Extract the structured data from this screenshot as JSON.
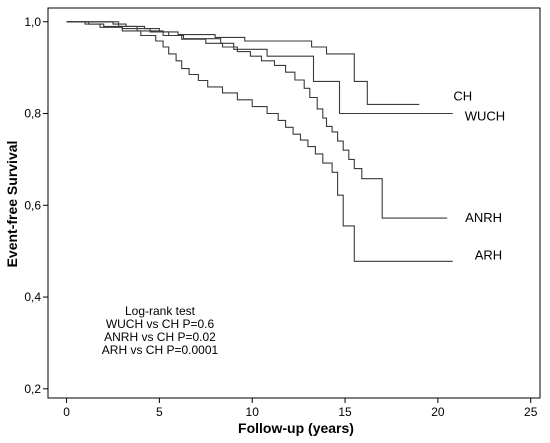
{
  "chart_data": {
    "type": "line",
    "step": true,
    "title": "",
    "xlabel": "Follow-up (years)",
    "ylabel": "Event-free Survival",
    "xlim": [
      -1,
      25.5
    ],
    "ylim": [
      0.18,
      1.03
    ],
    "x_ticks": [
      0,
      5,
      10,
      15,
      20,
      25
    ],
    "x_tick_labels": [
      "0",
      "5",
      "10",
      "15",
      "20",
      "25"
    ],
    "y_ticks": [
      0.2,
      0.4,
      0.6,
      0.8,
      1.0
    ],
    "y_tick_labels": [
      "0,2",
      "0,4",
      "0,6",
      "0,8",
      "1,0"
    ],
    "grid": false,
    "legend": "none",
    "line_color": "#3a3a3a",
    "series": [
      {
        "name": "CH",
        "points": [
          [
            0,
            1.0
          ],
          [
            2.5,
            1.0
          ],
          [
            2.5,
            0.995
          ],
          [
            3.2,
            0.995
          ],
          [
            3.2,
            0.99
          ],
          [
            4.2,
            0.99
          ],
          [
            4.2,
            0.985
          ],
          [
            5.0,
            0.985
          ],
          [
            5.0,
            0.978
          ],
          [
            6.0,
            0.978
          ],
          [
            6.0,
            0.972
          ],
          [
            8.0,
            0.972
          ],
          [
            8.0,
            0.966
          ],
          [
            9.6,
            0.966
          ],
          [
            9.6,
            0.958
          ],
          [
            13.2,
            0.958
          ],
          [
            13.2,
            0.945
          ],
          [
            14.0,
            0.945
          ],
          [
            14.0,
            0.93
          ],
          [
            15.5,
            0.93
          ],
          [
            15.5,
            0.87
          ],
          [
            16.2,
            0.87
          ],
          [
            16.2,
            0.82
          ],
          [
            19.0,
            0.82
          ]
        ],
        "end_label": "CH"
      },
      {
        "name": "WUCH",
        "points": [
          [
            0,
            1.0
          ],
          [
            2.8,
            1.0
          ],
          [
            2.8,
            0.99
          ],
          [
            3.8,
            0.99
          ],
          [
            3.8,
            0.98
          ],
          [
            5.2,
            0.98
          ],
          [
            5.2,
            0.97
          ],
          [
            6.3,
            0.97
          ],
          [
            6.3,
            0.963
          ],
          [
            8.3,
            0.963
          ],
          [
            8.3,
            0.953
          ],
          [
            9.0,
            0.953
          ],
          [
            9.0,
            0.94
          ],
          [
            10.8,
            0.94
          ],
          [
            10.8,
            0.925
          ],
          [
            13.3,
            0.925
          ],
          [
            13.3,
            0.87
          ],
          [
            14.7,
            0.87
          ],
          [
            14.7,
            0.8
          ],
          [
            20.8,
            0.8
          ]
        ],
        "end_label": "WUCH"
      },
      {
        "name": "ANRH",
        "points": [
          [
            0,
            1.0
          ],
          [
            1.2,
            1.0
          ],
          [
            1.2,
            0.995
          ],
          [
            2.0,
            0.995
          ],
          [
            2.0,
            0.99
          ],
          [
            3.0,
            0.99
          ],
          [
            3.0,
            0.985
          ],
          [
            4.5,
            0.985
          ],
          [
            4.5,
            0.978
          ],
          [
            5.5,
            0.978
          ],
          [
            5.5,
            0.97
          ],
          [
            6.2,
            0.97
          ],
          [
            6.2,
            0.962
          ],
          [
            7.5,
            0.962
          ],
          [
            7.5,
            0.953
          ],
          [
            8.4,
            0.953
          ],
          [
            8.4,
            0.945
          ],
          [
            9.2,
            0.945
          ],
          [
            9.2,
            0.935
          ],
          [
            9.9,
            0.935
          ],
          [
            9.9,
            0.925
          ],
          [
            10.5,
            0.925
          ],
          [
            10.5,
            0.915
          ],
          [
            11.2,
            0.915
          ],
          [
            11.2,
            0.905
          ],
          [
            11.8,
            0.905
          ],
          [
            11.8,
            0.89
          ],
          [
            12.3,
            0.89
          ],
          [
            12.3,
            0.873
          ],
          [
            12.8,
            0.873
          ],
          [
            12.8,
            0.855
          ],
          [
            13.1,
            0.855
          ],
          [
            13.1,
            0.835
          ],
          [
            13.5,
            0.835
          ],
          [
            13.5,
            0.81
          ],
          [
            13.8,
            0.81
          ],
          [
            13.8,
            0.79
          ],
          [
            14.0,
            0.79
          ],
          [
            14.0,
            0.772
          ],
          [
            14.3,
            0.772
          ],
          [
            14.3,
            0.76
          ],
          [
            14.6,
            0.76
          ],
          [
            14.6,
            0.74
          ],
          [
            14.9,
            0.74
          ],
          [
            14.9,
            0.72
          ],
          [
            15.2,
            0.72
          ],
          [
            15.2,
            0.7
          ],
          [
            15.5,
            0.7
          ],
          [
            15.5,
            0.68
          ],
          [
            15.9,
            0.68
          ],
          [
            15.9,
            0.658
          ],
          [
            17.0,
            0.658
          ],
          [
            17.0,
            0.572
          ],
          [
            20.5,
            0.572
          ]
        ],
        "end_label": "ANRH"
      },
      {
        "name": "ARH",
        "points": [
          [
            0,
            1.0
          ],
          [
            1.0,
            1.0
          ],
          [
            1.0,
            0.995
          ],
          [
            1.8,
            0.995
          ],
          [
            1.8,
            0.988
          ],
          [
            3.0,
            0.988
          ],
          [
            3.0,
            0.98
          ],
          [
            4.0,
            0.98
          ],
          [
            4.0,
            0.97
          ],
          [
            4.8,
            0.97
          ],
          [
            4.8,
            0.958
          ],
          [
            5.2,
            0.958
          ],
          [
            5.2,
            0.945
          ],
          [
            5.5,
            0.945
          ],
          [
            5.5,
            0.93
          ],
          [
            5.9,
            0.93
          ],
          [
            5.9,
            0.915
          ],
          [
            6.2,
            0.915
          ],
          [
            6.2,
            0.898
          ],
          [
            6.6,
            0.898
          ],
          [
            6.6,
            0.885
          ],
          [
            7.1,
            0.885
          ],
          [
            7.1,
            0.872
          ],
          [
            7.6,
            0.872
          ],
          [
            7.6,
            0.858
          ],
          [
            8.4,
            0.858
          ],
          [
            8.4,
            0.845
          ],
          [
            9.2,
            0.845
          ],
          [
            9.2,
            0.83
          ],
          [
            10.0,
            0.83
          ],
          [
            10.0,
            0.815
          ],
          [
            10.8,
            0.815
          ],
          [
            10.8,
            0.8
          ],
          [
            11.4,
            0.8
          ],
          [
            11.4,
            0.785
          ],
          [
            11.8,
            0.785
          ],
          [
            11.8,
            0.77
          ],
          [
            12.2,
            0.77
          ],
          [
            12.2,
            0.755
          ],
          [
            12.6,
            0.755
          ],
          [
            12.6,
            0.742
          ],
          [
            13.0,
            0.742
          ],
          [
            13.0,
            0.728
          ],
          [
            13.4,
            0.728
          ],
          [
            13.4,
            0.712
          ],
          [
            13.8,
            0.712
          ],
          [
            13.8,
            0.692
          ],
          [
            14.3,
            0.692
          ],
          [
            14.3,
            0.672
          ],
          [
            14.6,
            0.672
          ],
          [
            14.6,
            0.622
          ],
          [
            14.9,
            0.622
          ],
          [
            14.9,
            0.555
          ],
          [
            15.5,
            0.555
          ],
          [
            15.5,
            0.478
          ],
          [
            20.8,
            0.478
          ]
        ],
        "end_label": "ARH"
      }
    ],
    "annotation": {
      "lines": [
        "Log-rank test",
        "WUCH vs CH P=0.6",
        "ANRH vs CH P=0.02",
        "ARH vs CH P=0.0001"
      ]
    }
  }
}
